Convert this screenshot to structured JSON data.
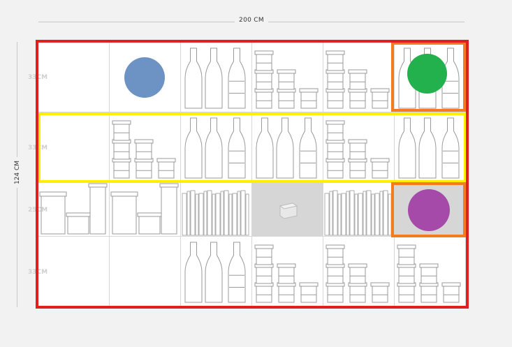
{
  "dimensions": {
    "width_label": "200 CM",
    "height_label": "124 CM",
    "rows": [
      {
        "label": "33CM"
      },
      {
        "label": "33CM"
      },
      {
        "label": "25CM"
      },
      {
        "label": "33CM"
      }
    ]
  },
  "grid": {
    "cells": [
      [
        "empty",
        "empty",
        "bottles",
        "jars",
        "jars",
        "bottles"
      ],
      [
        "empty",
        "jars",
        "bottles",
        "bottles",
        "jars",
        "bottles"
      ],
      [
        "canisters",
        "canisters",
        "books",
        "box",
        "books",
        "empty"
      ],
      [
        "empty",
        "empty",
        "bottles",
        "jars",
        "jars",
        "jars"
      ]
    ]
  },
  "highlights": {
    "outer_frame_color": "#e02020",
    "row_frame_color": "#ffee00",
    "cell_frame_color": "#f47b20"
  },
  "markers": [
    {
      "name": "blue-marker",
      "color": "#6d93c4"
    },
    {
      "name": "green-marker",
      "color": "#22b14c"
    },
    {
      "name": "purple-marker",
      "color": "#a54aa8"
    }
  ]
}
